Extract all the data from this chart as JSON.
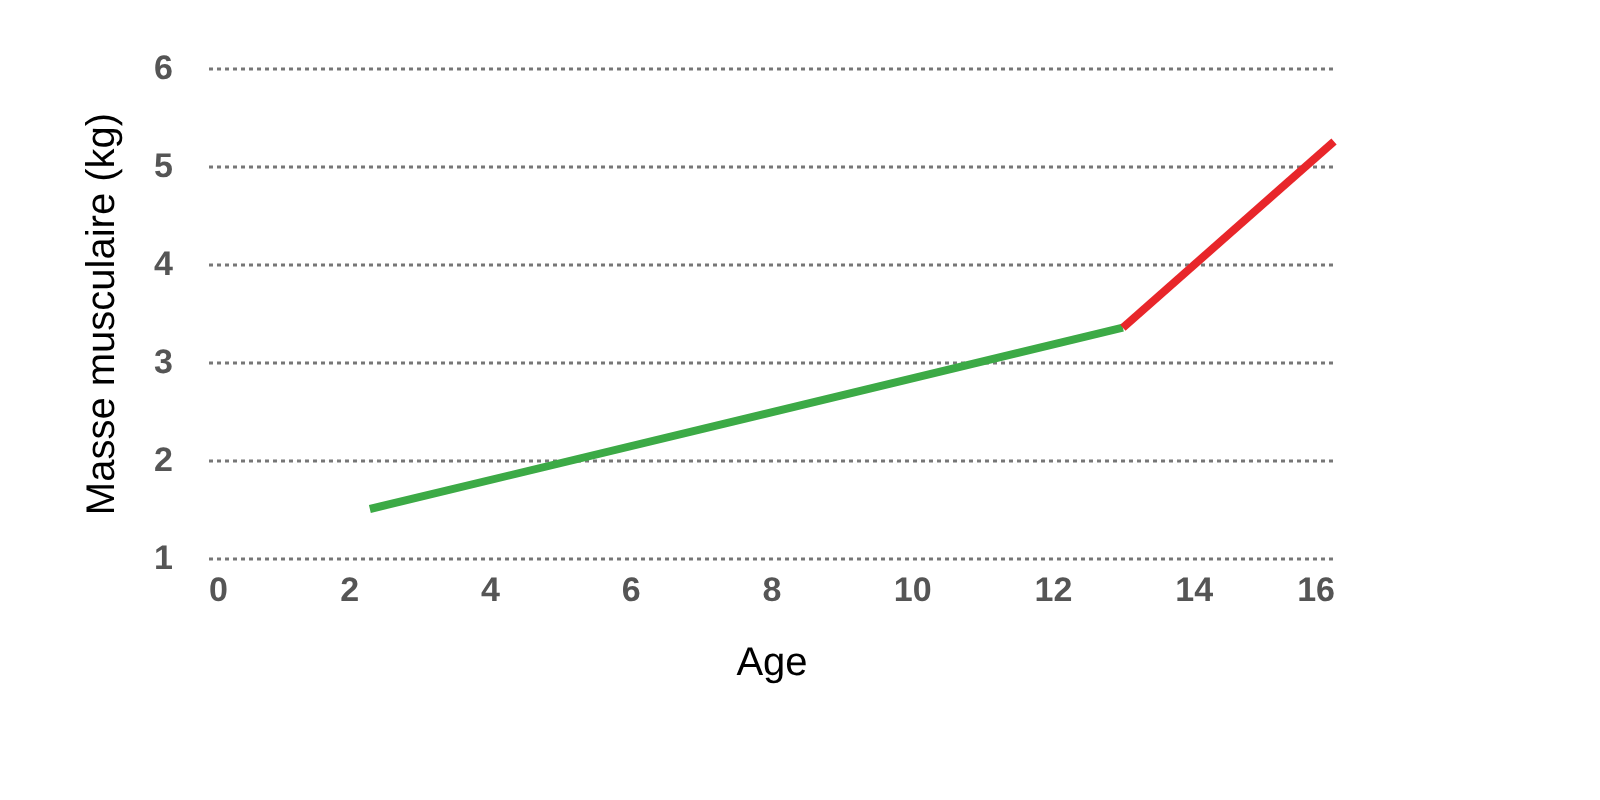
{
  "chart_data": {
    "type": "line",
    "xlabel": "Age",
    "ylabel": "Masse musculaire (kg)",
    "series": [
      {
        "color": "#3caa46",
        "x": [
          2.3,
          13
        ],
        "values": [
          1.5,
          3.35
        ]
      },
      {
        "color": "#e8262a",
        "x": [
          13,
          16
        ],
        "values": [
          3.35,
          5.25
        ]
      }
    ],
    "xlim": [
      0,
      16
    ],
    "xticks": [
      0,
      2,
      4,
      6,
      8,
      10,
      12,
      14,
      16
    ],
    "ylim": [
      1,
      6
    ],
    "yticks": [
      1,
      2,
      3,
      4,
      5,
      6
    ],
    "grid": "y",
    "marker": "none",
    "line_style": "solid"
  }
}
